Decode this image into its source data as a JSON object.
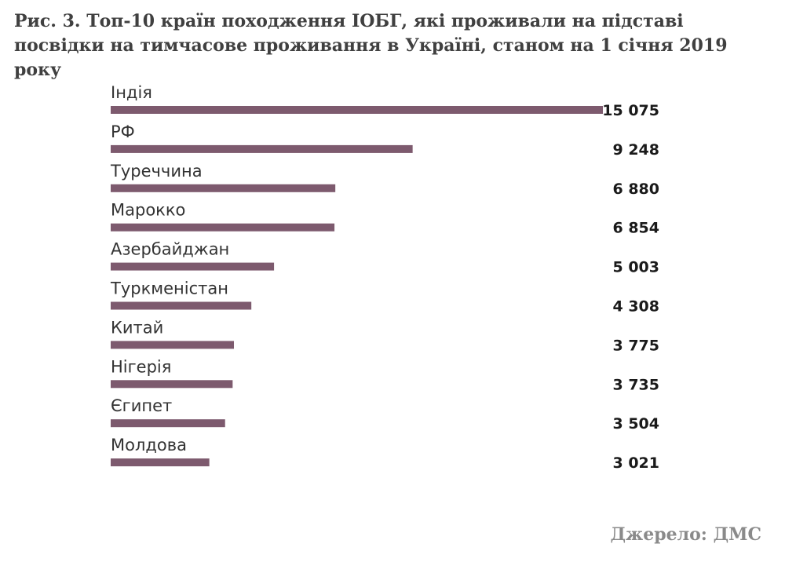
{
  "title": "Рис. 3. Топ-10 країн походження ІОБГ, які проживали на підставі посвідки на тимчасове проживання в Україні, станом на 1 січня 2019 року",
  "source": "Джерело: ДМС",
  "colors": {
    "bar": "#7d5a6e",
    "label": "#333333",
    "value": "#1a1a1a"
  },
  "chart_data": {
    "type": "bar",
    "orientation": "horizontal",
    "categories": [
      "Індія",
      "РФ",
      "Туреччина",
      "Марокко",
      "Азербайджан",
      "Туркменістан",
      "Китай",
      "Нігерія",
      "Єгипет",
      "Молдова"
    ],
    "values": [
      15075,
      9248,
      6880,
      6854,
      5003,
      4308,
      3775,
      3735,
      3504,
      3021
    ],
    "value_labels": [
      "15 075",
      "9 248",
      "6 880",
      "6 854",
      "5 003",
      "4 308",
      "3 775",
      "3 735",
      "3 504",
      "3 021"
    ],
    "xlim": [
      0,
      15075
    ],
    "grid": false,
    "legend": "none"
  }
}
